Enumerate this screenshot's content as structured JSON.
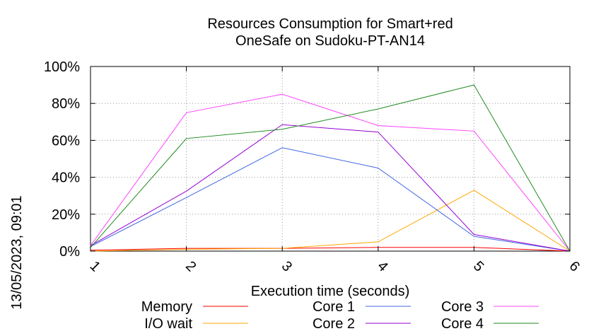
{
  "chart_data": {
    "type": "line",
    "title_lines": [
      "Resources Consumption for Smart+red",
      "OneSafe on Sudoku-PT-AN14"
    ],
    "xlabel": "Execution time (seconds)",
    "ylabel": "",
    "side_label": "13/05/2023, 09:01",
    "x": [
      1,
      2,
      3,
      4,
      5,
      6
    ],
    "x_ticks": [
      "1",
      "2",
      "3",
      "4",
      "5",
      "6"
    ],
    "y_ticks": [
      "0%",
      "20%",
      "40%",
      "60%",
      "80%",
      "100%"
    ],
    "xlim": [
      1,
      6
    ],
    "ylim": [
      0,
      100
    ],
    "grid": true,
    "legend_position": "bottom",
    "series": [
      {
        "name": "Memory",
        "color": "#ff0000",
        "values": [
          0.5,
          1.5,
          1.5,
          2,
          2,
          0
        ]
      },
      {
        "name": "I/O wait",
        "color": "#ffa500",
        "values": [
          0,
          1,
          1.5,
          5,
          33,
          0
        ]
      },
      {
        "name": "Core 1",
        "color": "#4169e1",
        "values": [
          2.5,
          29,
          56,
          45,
          8,
          0
        ]
      },
      {
        "name": "Core 2",
        "color": "#9400d3",
        "values": [
          3,
          32.5,
          68.5,
          64.5,
          9,
          0
        ]
      },
      {
        "name": "Core 3",
        "color": "#ff44ff",
        "values": [
          3,
          75,
          85,
          68,
          65,
          0
        ]
      },
      {
        "name": "Core 4",
        "color": "#228b22",
        "values": [
          2,
          61,
          66,
          77,
          90,
          0
        ]
      }
    ]
  }
}
